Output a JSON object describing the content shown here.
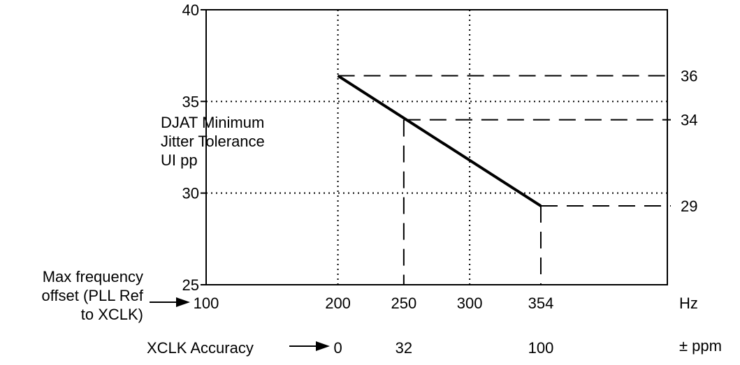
{
  "chart_data": {
    "type": "line",
    "title": "",
    "ylabel_lines": [
      "DJAT Minimum",
      "Jitter Tolerance",
      "UI pp"
    ],
    "x_axis_label_lines": [
      "Max frequency",
      "offset (PLL Ref",
      "to XCLK)"
    ],
    "x_unit": "Hz",
    "xlim": [
      100,
      450
    ],
    "ylim": [
      25,
      40
    ],
    "x_ticks": [
      100,
      200,
      250,
      300,
      354
    ],
    "y_ticks": [
      25,
      30,
      35,
      40
    ],
    "grid_x": [
      200,
      300
    ],
    "grid_y": [
      30,
      35
    ],
    "right_axis_ticks": [
      36,
      34,
      29
    ],
    "secondary_axis_label": "XCLK Accuracy",
    "secondary_unit": "± ppm",
    "secondary_ticks": [
      {
        "x": 200,
        "label": "0"
      },
      {
        "x": 250,
        "label": "32"
      },
      {
        "x": 354,
        "label": "100"
      }
    ],
    "series": [
      {
        "x": [
          200,
          354
        ],
        "y": [
          36.4,
          29.3
        ]
      }
    ],
    "reference_lines": [
      {
        "from": [
          200,
          36.4
        ],
        "label": "36"
      },
      {
        "from": [
          250,
          34
        ],
        "label": "34"
      },
      {
        "from": [
          354,
          29.3
        ],
        "label": "29"
      }
    ]
  }
}
